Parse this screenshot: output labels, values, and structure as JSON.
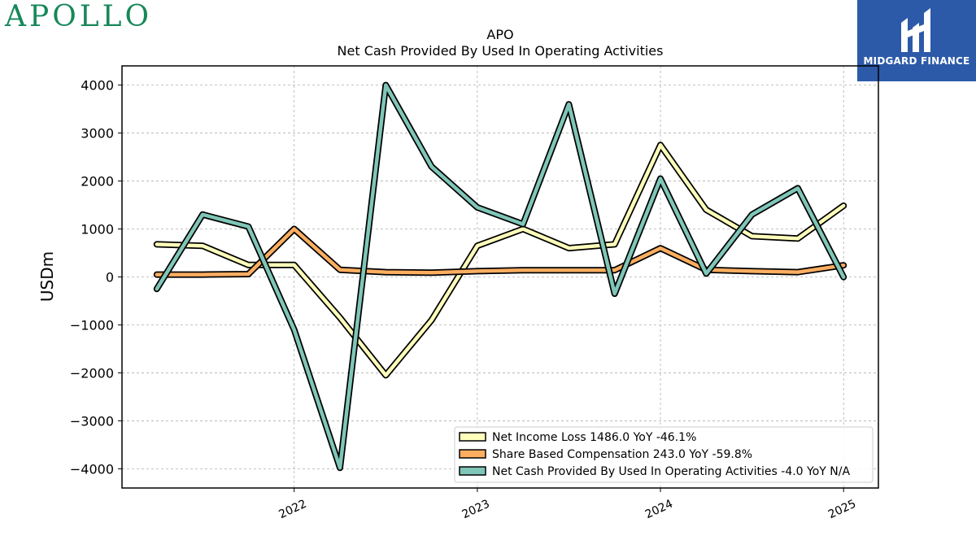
{
  "brand": {
    "name": "APOLLO"
  },
  "badge": {
    "label": "MIDGARD FINANCE"
  },
  "chart_data": {
    "type": "line",
    "title": "APO",
    "subtitle": "Net Cash Provided By Used In Operating Activities",
    "ylabel": "USDm",
    "xlabel": "",
    "ylim": [
      -4400,
      4400
    ],
    "xlim": [
      2021.06,
      2025.19
    ],
    "y_ticks": [
      4000,
      3000,
      2000,
      1000,
      0,
      -1000,
      -2000,
      -3000,
      -4000
    ],
    "y_tick_labels": [
      "4000",
      "3000",
      "2000",
      "1000",
      "0",
      "−1000",
      "−2000",
      "−3000",
      "−4000"
    ],
    "x_ticks": [
      2022,
      2023,
      2024,
      2025
    ],
    "x_tick_labels": [
      "2022",
      "2023",
      "2024",
      "2025"
    ],
    "grid": true,
    "legend_position": "bottom-right",
    "x": [
      2021.25,
      2021.5,
      2021.75,
      2022.0,
      2022.25,
      2022.5,
      2022.75,
      2023.0,
      2023.25,
      2023.5,
      2023.75,
      2024.0,
      2024.25,
      2024.5,
      2024.75,
      2025.0
    ],
    "series": [
      {
        "name": "Net Income Loss",
        "legend": "Net Income Loss  1486.0 YoY -46.1%",
        "color": "#ffffbb",
        "values": [
          680,
          650,
          250,
          250,
          -850,
          -2050,
          -900,
          650,
          1000,
          600,
          680,
          2750,
          1400,
          850,
          800,
          1486
        ]
      },
      {
        "name": "Share Based Compensation",
        "legend": "Share Based Compensation  243.0 YoY -59.8%",
        "color": "#fdae61",
        "values": [
          50,
          50,
          60,
          1000,
          150,
          100,
          90,
          120,
          140,
          140,
          140,
          600,
          150,
          120,
          100,
          243
        ]
      },
      {
        "name": "Net Cash Provided By Used In Operating Activities",
        "legend": "Net Cash Provided By Used In Operating Activities  -4.0 YoY N/A",
        "color": "#7fc6b8",
        "values": [
          -250,
          1300,
          1050,
          -1100,
          -3980,
          4000,
          2300,
          1450,
          1100,
          3600,
          -350,
          2050,
          70,
          1300,
          1850,
          -4
        ]
      }
    ]
  }
}
